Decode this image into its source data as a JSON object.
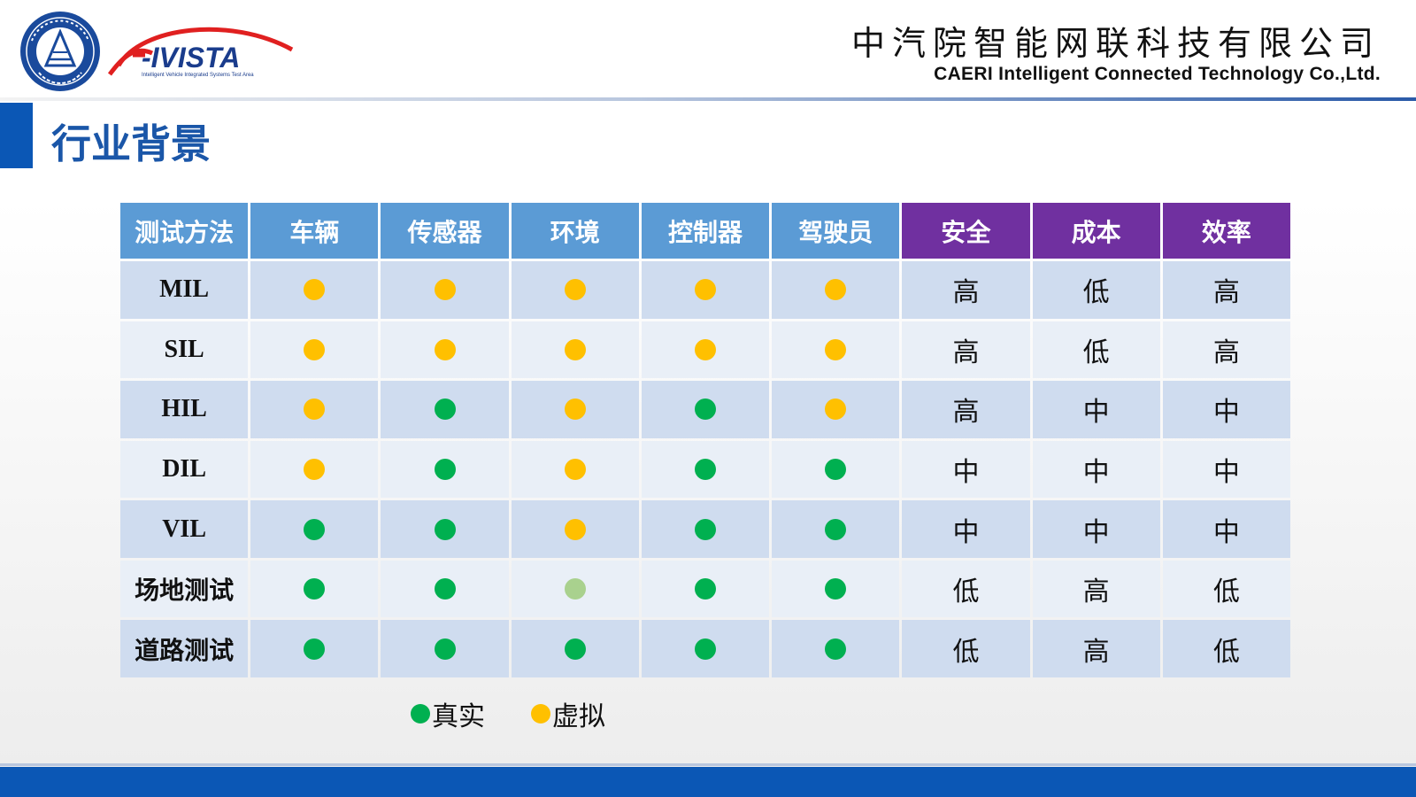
{
  "header": {
    "logo_seal_text": "中国汽车工程研究院 CAERI",
    "logo_brand": "i-VISTA",
    "logo_tagline": "Intelligent Vehicle Integrated Systems Test Area",
    "company_cn": "中汽院智能网联科技有限公司",
    "company_en": "CAERI Intelligent Connected Technology Co.,Ltd."
  },
  "page_title": "行业背景",
  "colors": {
    "real": "#00b050",
    "virtual": "#ffc000",
    "partial": "#a9d18e",
    "header_blue": "#5b9bd5",
    "header_purple": "#7030a0",
    "accent": "#0b57b5"
  },
  "table": {
    "headers": [
      {
        "label": "测试方法",
        "style": "blue"
      },
      {
        "label": "车辆",
        "style": "blue"
      },
      {
        "label": "传感器",
        "style": "blue"
      },
      {
        "label": "环境",
        "style": "blue"
      },
      {
        "label": "控制器",
        "style": "blue"
      },
      {
        "label": "驾驶员",
        "style": "blue"
      },
      {
        "label": "安全",
        "style": "purple"
      },
      {
        "label": "成本",
        "style": "purple"
      },
      {
        "label": "效率",
        "style": "purple"
      }
    ],
    "rows": [
      {
        "method": "MIL",
        "script": "latin",
        "indicators": [
          "virtual",
          "virtual",
          "virtual",
          "virtual",
          "virtual"
        ],
        "levels": [
          "高",
          "低",
          "高"
        ]
      },
      {
        "method": "SIL",
        "script": "latin",
        "indicators": [
          "virtual",
          "virtual",
          "virtual",
          "virtual",
          "virtual"
        ],
        "levels": [
          "高",
          "低",
          "高"
        ]
      },
      {
        "method": "HIL",
        "script": "latin",
        "indicators": [
          "virtual",
          "real",
          "virtual",
          "real",
          "virtual"
        ],
        "levels": [
          "高",
          "中",
          "中"
        ]
      },
      {
        "method": "DIL",
        "script": "latin",
        "indicators": [
          "virtual",
          "real",
          "virtual",
          "real",
          "real"
        ],
        "levels": [
          "中",
          "中",
          "中"
        ]
      },
      {
        "method": "VIL",
        "script": "latin",
        "indicators": [
          "real",
          "real",
          "virtual",
          "real",
          "real"
        ],
        "levels": [
          "中",
          "中",
          "中"
        ]
      },
      {
        "method": "场地测试",
        "script": "cjk",
        "indicators": [
          "real",
          "real",
          "partial",
          "real",
          "real"
        ],
        "levels": [
          "低",
          "高",
          "低"
        ]
      },
      {
        "method": "道路测试",
        "script": "cjk",
        "indicators": [
          "real",
          "real",
          "real",
          "real",
          "real"
        ],
        "levels": [
          "低",
          "高",
          "低"
        ]
      }
    ]
  },
  "legend": [
    {
      "label": "真实",
      "color_key": "real"
    },
    {
      "label": "虚拟",
      "color_key": "virtual"
    }
  ]
}
